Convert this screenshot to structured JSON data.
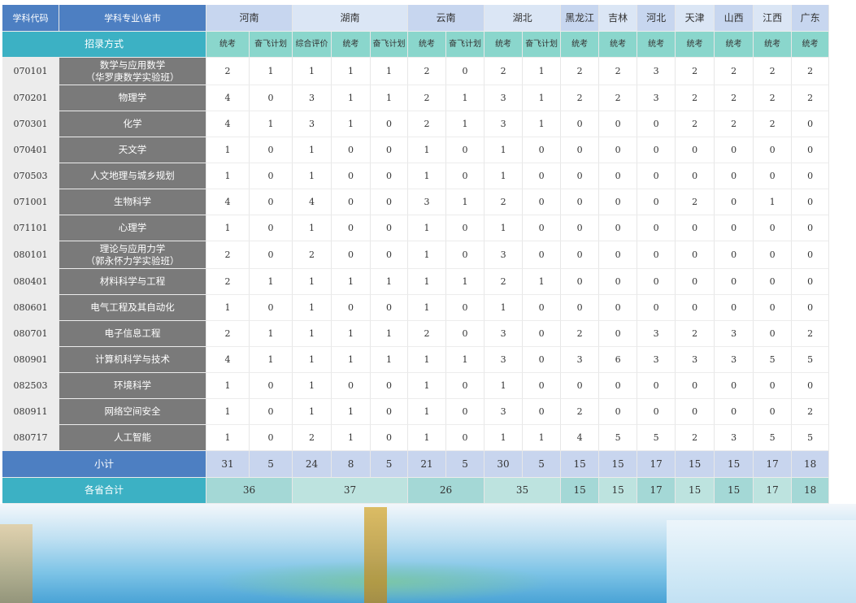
{
  "headers": {
    "code": "学科代码",
    "subject": "学科专业\\省市",
    "method": "招录方式",
    "provinces": [
      "河南",
      "湖南",
      "云南",
      "湖北",
      "黑龙江",
      "吉林",
      "河北",
      "天津",
      "山西",
      "江西",
      "广东"
    ],
    "methods": [
      "统考",
      "奋飞计划",
      "综合评价",
      "统考",
      "奋飞计划",
      "统考",
      "奋飞计划",
      "统考",
      "奋飞计划",
      "统考",
      "统考",
      "统考",
      "统考",
      "统考",
      "统考",
      "统考"
    ]
  },
  "rows": [
    {
      "code": "070101",
      "name": "数学与应用数学",
      "name2": "（华罗庚数学实验班）",
      "v": [
        "2",
        "1",
        "1",
        "1",
        "1",
        "2",
        "0",
        "2",
        "1",
        "2",
        "2",
        "3",
        "2",
        "2",
        "2",
        "2"
      ]
    },
    {
      "code": "070201",
      "name": "物理学",
      "name2": "",
      "v": [
        "4",
        "0",
        "3",
        "1",
        "1",
        "2",
        "1",
        "3",
        "1",
        "2",
        "2",
        "3",
        "2",
        "2",
        "2",
        "2"
      ]
    },
    {
      "code": "070301",
      "name": "化学",
      "name2": "",
      "v": [
        "4",
        "1",
        "3",
        "1",
        "0",
        "2",
        "1",
        "3",
        "1",
        "0",
        "0",
        "0",
        "2",
        "2",
        "2",
        "0"
      ]
    },
    {
      "code": "070401",
      "name": "天文学",
      "name2": "",
      "v": [
        "1",
        "0",
        "1",
        "0",
        "0",
        "1",
        "0",
        "1",
        "0",
        "0",
        "0",
        "0",
        "0",
        "0",
        "0",
        "0"
      ]
    },
    {
      "code": "070503",
      "name": "人文地理与城乡规划",
      "name2": "",
      "v": [
        "1",
        "0",
        "1",
        "0",
        "0",
        "1",
        "0",
        "1",
        "0",
        "0",
        "0",
        "0",
        "0",
        "0",
        "0",
        "0"
      ]
    },
    {
      "code": "071001",
      "name": "生物科学",
      "name2": "",
      "v": [
        "4",
        "0",
        "4",
        "0",
        "0",
        "3",
        "1",
        "2",
        "0",
        "0",
        "0",
        "0",
        "2",
        "0",
        "1",
        "0"
      ]
    },
    {
      "code": "071101",
      "name": "心理学",
      "name2": "",
      "v": [
        "1",
        "0",
        "1",
        "0",
        "0",
        "1",
        "0",
        "1",
        "0",
        "0",
        "0",
        "0",
        "0",
        "0",
        "0",
        "0"
      ]
    },
    {
      "code": "080101",
      "name": "理论与应用力学",
      "name2": "（郭永怀力学实验班）",
      "v": [
        "2",
        "0",
        "2",
        "0",
        "0",
        "1",
        "0",
        "3",
        "0",
        "0",
        "0",
        "0",
        "0",
        "0",
        "0",
        "0"
      ]
    },
    {
      "code": "080401",
      "name": "材料科学与工程",
      "name2": "",
      "v": [
        "2",
        "1",
        "1",
        "1",
        "1",
        "1",
        "1",
        "2",
        "1",
        "0",
        "0",
        "0",
        "0",
        "0",
        "0",
        "0"
      ]
    },
    {
      "code": "080601",
      "name": "电气工程及其自动化",
      "name2": "",
      "v": [
        "1",
        "0",
        "1",
        "0",
        "0",
        "1",
        "0",
        "1",
        "0",
        "0",
        "0",
        "0",
        "0",
        "0",
        "0",
        "0"
      ]
    },
    {
      "code": "080701",
      "name": "电子信息工程",
      "name2": "",
      "v": [
        "2",
        "1",
        "1",
        "1",
        "1",
        "2",
        "0",
        "3",
        "0",
        "2",
        "0",
        "3",
        "2",
        "3",
        "0",
        "2"
      ]
    },
    {
      "code": "080901",
      "name": "计算机科学与技术",
      "name2": "",
      "v": [
        "4",
        "1",
        "1",
        "1",
        "1",
        "1",
        "1",
        "3",
        "0",
        "3",
        "6",
        "3",
        "3",
        "3",
        "5",
        "5"
      ]
    },
    {
      "code": "082503",
      "name": "环境科学",
      "name2": "",
      "v": [
        "1",
        "0",
        "1",
        "0",
        "0",
        "1",
        "0",
        "1",
        "0",
        "0",
        "0",
        "0",
        "0",
        "0",
        "0",
        "0"
      ]
    },
    {
      "code": "080911",
      "name": "网络空间安全",
      "name2": "",
      "v": [
        "1",
        "0",
        "1",
        "1",
        "0",
        "1",
        "0",
        "3",
        "0",
        "2",
        "0",
        "0",
        "0",
        "0",
        "0",
        "2"
      ]
    },
    {
      "code": "080717",
      "name": "人工智能",
      "name2": "",
      "v": [
        "1",
        "0",
        "2",
        "1",
        "0",
        "1",
        "0",
        "1",
        "1",
        "4",
        "5",
        "5",
        "2",
        "3",
        "5",
        "5"
      ]
    }
  ],
  "subtotal": {
    "label": "小计",
    "v": [
      "31",
      "5",
      "24",
      "8",
      "5",
      "21",
      "5",
      "30",
      "5",
      "15",
      "15",
      "17",
      "15",
      "15",
      "17",
      "18"
    ]
  },
  "total": {
    "label": "各省合计",
    "v": [
      "36",
      "37",
      "26",
      "35",
      "15",
      "15",
      "17",
      "15",
      "15",
      "17",
      "18"
    ]
  }
}
